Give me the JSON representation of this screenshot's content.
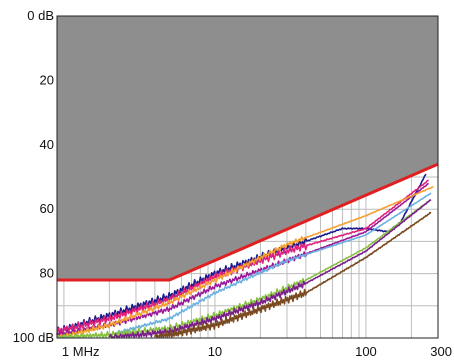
{
  "chart_data": {
    "type": "line",
    "xscale": "log",
    "xlim": [
      0.9,
      300
    ],
    "ylim": [
      0,
      100
    ],
    "yaxis_inverted": true,
    "grid": true,
    "x_tick_labels": [
      {
        "value": 1,
        "label": "1 MHz"
      },
      {
        "value": 10,
        "label": "10"
      },
      {
        "value": 100,
        "label": "100"
      },
      {
        "value": 300,
        "label": "300"
      }
    ],
    "y_tick_labels": [
      {
        "value": 0,
        "label": "0 dB"
      },
      {
        "value": 20,
        "label": "20"
      },
      {
        "value": 40,
        "label": "40"
      },
      {
        "value": 60,
        "label": "60"
      },
      {
        "value": 80,
        "label": "80"
      },
      {
        "value": 100,
        "label": "100 dB"
      }
    ],
    "limit_line": {
      "color": "#e02020",
      "points": [
        [
          0.9,
          82
        ],
        [
          5,
          82
        ],
        [
          300,
          46
        ]
      ],
      "fill_color": "#8e8e8e"
    },
    "series": [
      {
        "color": "#1a1a8c",
        "jitter": 1.2,
        "points": [
          [
            0.9,
            98
          ],
          [
            2,
            93
          ],
          [
            5,
            87
          ],
          [
            10,
            80
          ],
          [
            30,
            72
          ],
          [
            70,
            66
          ],
          [
            100,
            66
          ],
          [
            140,
            67
          ],
          [
            170,
            64
          ],
          [
            250,
            49
          ]
        ]
      },
      {
        "color": "#e0207a",
        "jitter": 1.2,
        "points": [
          [
            0.9,
            98
          ],
          [
            2,
            94
          ],
          [
            5,
            88
          ],
          [
            10,
            81
          ],
          [
            30,
            73
          ],
          [
            100,
            66
          ],
          [
            260,
            51
          ]
        ]
      },
      {
        "color": "#9a1a9a",
        "jitter": 0.8,
        "points": [
          [
            0.9,
            99
          ],
          [
            2,
            96
          ],
          [
            5,
            91
          ],
          [
            10,
            84
          ],
          [
            30,
            76
          ],
          [
            100,
            67
          ],
          [
            260,
            52
          ]
        ]
      },
      {
        "color": "#f5a030",
        "jitter": 0.8,
        "points": [
          [
            0.9,
            100
          ],
          [
            2,
            96
          ],
          [
            5,
            89
          ],
          [
            10,
            82
          ],
          [
            30,
            71
          ],
          [
            100,
            62
          ],
          [
            280,
            53
          ]
        ]
      },
      {
        "color": "#6ab0e0",
        "jitter": 0.5,
        "points": [
          [
            0.9,
            100
          ],
          [
            2,
            99
          ],
          [
            5,
            94
          ],
          [
            10,
            86
          ],
          [
            30,
            76
          ],
          [
            100,
            68
          ],
          [
            270,
            55
          ]
        ]
      },
      {
        "color": "#88c040",
        "jitter": 1.0,
        "points": [
          [
            0.9,
            100
          ],
          [
            2,
            99
          ],
          [
            5,
            97
          ],
          [
            10,
            93
          ],
          [
            20,
            88
          ],
          [
            40,
            82
          ],
          [
            100,
            72
          ],
          [
            270,
            57
          ]
        ]
      },
      {
        "color": "#7a1f8a",
        "jitter": 1.0,
        "points": [
          [
            2,
            100
          ],
          [
            5,
            98
          ],
          [
            10,
            94
          ],
          [
            20,
            89
          ],
          [
            40,
            83
          ],
          [
            100,
            73
          ],
          [
            270,
            57
          ]
        ]
      },
      {
        "color": "#7a4a20",
        "jitter": 1.2,
        "points": [
          [
            4,
            100
          ],
          [
            10,
            96
          ],
          [
            20,
            91
          ],
          [
            40,
            86
          ],
          [
            100,
            75
          ],
          [
            270,
            61
          ]
        ]
      }
    ]
  }
}
